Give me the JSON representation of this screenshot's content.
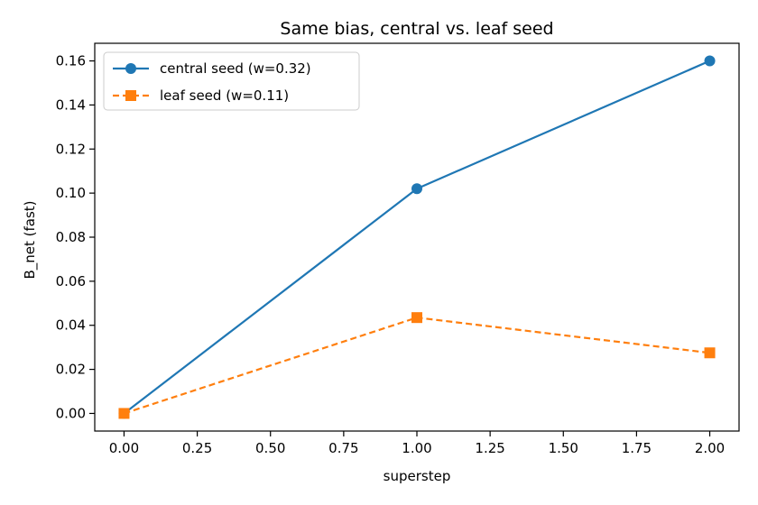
{
  "chart_data": {
    "type": "line",
    "title": "Same bias, central vs. leaf seed",
    "xlabel": "superstep",
    "ylabel": "B_net (fast)",
    "xlim": [
      -0.1,
      2.1
    ],
    "ylim": [
      -0.008,
      0.168
    ],
    "xticks": [
      0.0,
      0.25,
      0.5,
      0.75,
      1.0,
      1.25,
      1.5,
      1.75,
      2.0
    ],
    "xtick_labels": [
      "0.00",
      "0.25",
      "0.50",
      "0.75",
      "1.00",
      "1.25",
      "1.50",
      "1.75",
      "2.00"
    ],
    "yticks": [
      0.0,
      0.02,
      0.04,
      0.06,
      0.08,
      0.1,
      0.12,
      0.14,
      0.16
    ],
    "ytick_labels": [
      "0.00",
      "0.02",
      "0.04",
      "0.06",
      "0.08",
      "0.10",
      "0.12",
      "0.14",
      "0.16"
    ],
    "grid": false,
    "legend": "top-left",
    "x": [
      0,
      1,
      2
    ],
    "series": [
      {
        "name": "central seed (w=0.32)",
        "values": [
          0.0,
          0.102,
          0.16
        ],
        "color": "#1f77b4",
        "marker": "circle",
        "linestyle": "solid"
      },
      {
        "name": "leaf seed (w=0.11)",
        "values": [
          0.0,
          0.0435,
          0.0275
        ],
        "color": "#ff7f0e",
        "marker": "square",
        "linestyle": "dashed"
      }
    ]
  }
}
